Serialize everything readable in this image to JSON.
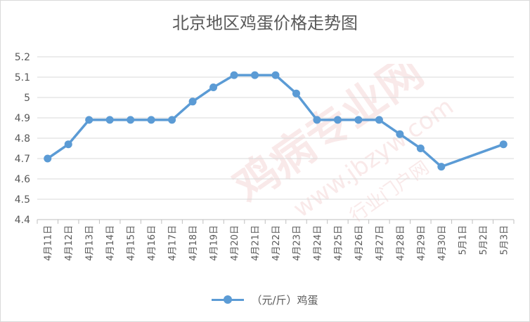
{
  "colors": {
    "series": "#5b9bd5",
    "grid": "#d9d9d9",
    "axis_text": "#595959",
    "watermark": "#e8a0a0"
  },
  "watermark": {
    "main": "鸡病专业网",
    "url": "www.jbzyw.com",
    "sub": "行业门户网"
  },
  "chart_data": {
    "type": "line",
    "title": "北京地区鸡蛋价格走势图",
    "xlabel": "",
    "ylabel": "",
    "ylim": [
      4.4,
      5.2
    ],
    "yticks": [
      4.4,
      4.5,
      4.6,
      4.7,
      4.8,
      4.9,
      5,
      5.1,
      5.2
    ],
    "grid": true,
    "legend": "bottom",
    "categories": [
      "4月11日",
      "4月12日",
      "4月13日",
      "4月14日",
      "4月15日",
      "4月16日",
      "4月17日",
      "4月18日",
      "4月19日",
      "4月20日",
      "4月21日",
      "4月22日",
      "4月23日",
      "4月24日",
      "4月25日",
      "4月26日",
      "4月27日",
      "4月28日",
      "4月29日",
      "4月30日",
      "5月1日",
      "5月2日",
      "5月3日"
    ],
    "series": [
      {
        "name": "（元/斤）鸡蛋",
        "values": [
          4.7,
          4.77,
          4.89,
          4.89,
          4.89,
          4.89,
          4.89,
          4.98,
          5.05,
          5.11,
          5.11,
          5.11,
          5.02,
          4.89,
          4.89,
          4.89,
          4.89,
          4.82,
          4.75,
          4.66,
          null,
          null,
          4.77
        ]
      }
    ]
  }
}
